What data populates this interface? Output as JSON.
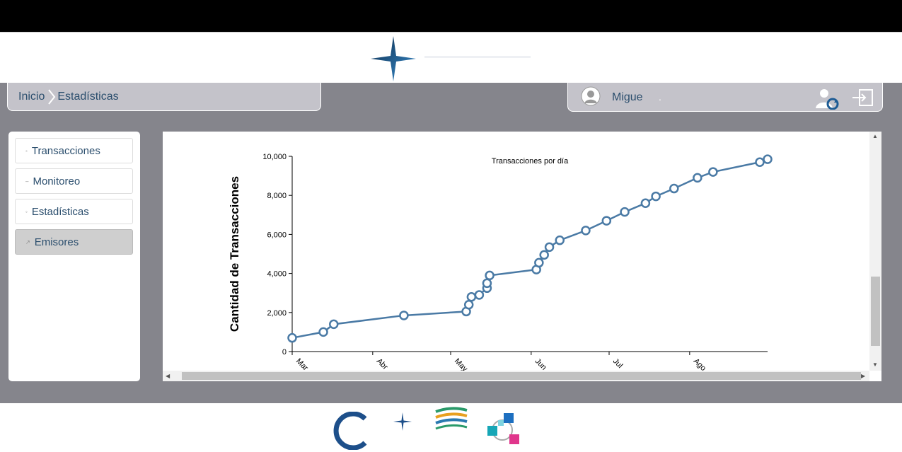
{
  "breadcrumb": {
    "home": "Inicio",
    "current": "Estadísticas"
  },
  "user": {
    "name": "Migue",
    "extra": "."
  },
  "sidebar": {
    "items": [
      {
        "label": "Transacciones"
      },
      {
        "label": "Monitoreo"
      },
      {
        "label": "Estadísticas"
      },
      {
        "label": "Emisores",
        "active": true
      }
    ]
  },
  "chart_data": {
    "type": "line",
    "title": "Transacciones por día",
    "ylabel": "Cantidad de Transacciones",
    "xlabel": "",
    "ylim": [
      0,
      10000
    ],
    "yticks": [
      "0",
      "2,000",
      "4,000",
      "6,000",
      "8,000",
      "10,000"
    ],
    "xticks": [
      "Mar",
      "Abr",
      "May",
      "Jun",
      "Jul",
      "Ago"
    ],
    "series": [
      {
        "color": "#4a7aa5",
        "x": [
          "2014-03-01",
          "2014-03-13",
          "2014-03-17",
          "2014-04-13",
          "2014-05-07",
          "2014-05-08",
          "2014-05-09",
          "2014-05-12",
          "2014-05-15",
          "2014-05-15",
          "2014-05-16",
          "2014-06-03",
          "2014-06-04",
          "2014-06-06",
          "2014-06-08",
          "2014-06-12",
          "2014-06-22",
          "2014-06-30",
          "2014-07-07",
          "2014-07-15",
          "2014-07-19",
          "2014-07-26",
          "2014-08-04",
          "2014-08-10",
          "2014-08-28",
          "2014-08-31"
        ],
        "values": [
          700,
          1000,
          1400,
          1850,
          2050,
          2400,
          2800,
          2900,
          3250,
          3500,
          3900,
          4200,
          4550,
          4950,
          5350,
          5700,
          6200,
          6700,
          7150,
          7600,
          7950,
          8350,
          8900,
          9200,
          9700,
          9850
        ]
      }
    ]
  },
  "colors": {
    "main_bg": "#85858c",
    "line": "#4a7aa5",
    "text": "#2c4f6e"
  }
}
